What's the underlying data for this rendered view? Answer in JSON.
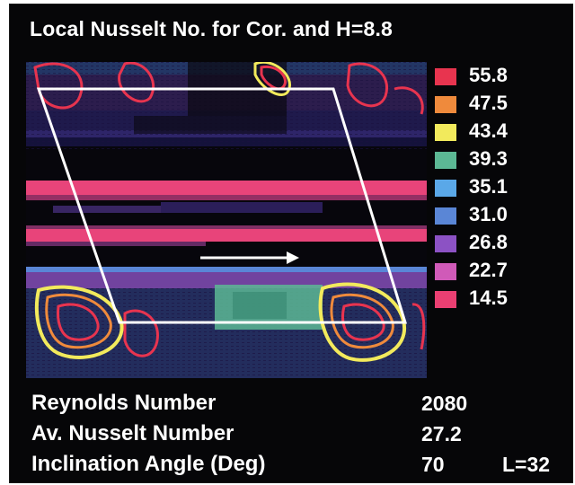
{
  "title": "Local Nusselt No. for Cor. and H=8.8",
  "legend": [
    {
      "label": "55.8",
      "color": "#e8344f"
    },
    {
      "label": "47.5",
      "color": "#ef8a3c"
    },
    {
      "label": "43.4",
      "color": "#f2ea5c"
    },
    {
      "label": "39.3",
      "color": "#5cb894"
    },
    {
      "label": "35.1",
      "color": "#5aa8e8"
    },
    {
      "label": "31.0",
      "color": "#5a86d6"
    },
    {
      "label": "26.8",
      "color": "#8c52c4"
    },
    {
      "label": "22.7",
      "color": "#d05ab8"
    },
    {
      "label": "14.5",
      "color": "#ea3f72"
    }
  ],
  "flow_arrow_icon": "right-arrow",
  "info": {
    "reynolds_label": "Reynolds Number",
    "reynolds_value": "2080",
    "nusselt_label": "Av. Nusselt Number",
    "nusselt_value": "27.2",
    "angle_label": "Inclination Angle (Deg)",
    "angle_value": "70",
    "length_label": "L=32"
  }
}
